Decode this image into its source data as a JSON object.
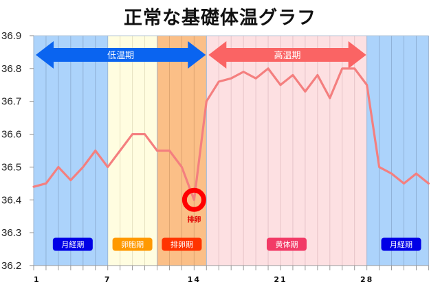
{
  "title": "正常な基礎体温グラフ",
  "chart_data": {
    "type": "line",
    "title": "正常な基礎体温グラフ",
    "xlabel": "",
    "ylabel": "",
    "ylim": [
      36.2,
      36.9
    ],
    "yticks": [
      36.9,
      36.8,
      36.7,
      36.6,
      36.5,
      36.4,
      36.3,
      36.2
    ],
    "ytick_labels": [
      "36.9",
      "36.8",
      "36.7",
      "36.6",
      "36.5",
      "36.4",
      "36.3",
      "36.2"
    ],
    "xlim": [
      1,
      33
    ],
    "xtick_labels": [
      {
        "day": 1,
        "label": "1"
      },
      {
        "day": 7,
        "label": "7"
      },
      {
        "day": 14,
        "label": "14"
      },
      {
        "day": 21,
        "label": "21"
      },
      {
        "day": 28,
        "label": "28"
      }
    ],
    "x": [
      1,
      2,
      3,
      4,
      5,
      6,
      7,
      8,
      9,
      10,
      11,
      12,
      13,
      14,
      15,
      16,
      17,
      18,
      19,
      20,
      21,
      22,
      23,
      24,
      25,
      26,
      27,
      28,
      29,
      30,
      31,
      32,
      33
    ],
    "series": [
      {
        "name": "基礎体温",
        "color": "#f47f7f",
        "values": [
          36.44,
          36.45,
          36.5,
          36.46,
          36.5,
          36.55,
          36.5,
          36.55,
          36.6,
          36.6,
          36.55,
          36.55,
          36.5,
          36.4,
          36.7,
          36.76,
          36.77,
          36.79,
          36.77,
          36.8,
          36.75,
          36.78,
          36.73,
          36.78,
          36.71,
          36.8,
          36.8,
          36.75,
          36.5,
          36.48,
          36.45,
          36.48,
          36.45
        ]
      }
    ],
    "phases": [
      {
        "name": "月経期",
        "start": 1,
        "end": 7,
        "bg": "#acd3fb",
        "badge_color": "#0000e6"
      },
      {
        "name": "卵胞期",
        "start": 7,
        "end": 11,
        "bg": "#fffde0",
        "badge_color": "#ff9900"
      },
      {
        "name": "排卵期",
        "start": 11,
        "end": 15,
        "bg": "#fbbf87",
        "badge_color": "#ff3300"
      },
      {
        "name": "黄体期",
        "start": 15,
        "end": 28,
        "bg": "#fde0e2",
        "badge_color": "#f23a66"
      },
      {
        "name": "月経期",
        "start": 28,
        "end": 33,
        "bg": "#acd3fb",
        "badge_color": "#0000e6"
      }
    ],
    "annotations": [
      {
        "type": "double-arrow",
        "label": "低温期",
        "from_day": 1,
        "to_day": 15,
        "color": "#0a64f0"
      },
      {
        "type": "double-arrow",
        "label": "高温期",
        "from_day": 15,
        "to_day": 28,
        "color": "#fa6464"
      },
      {
        "type": "circle-marker",
        "label": "排卵",
        "day": 14,
        "value": 36.4,
        "color": "#ff0000"
      }
    ],
    "grid": {
      "vertical": true,
      "horizontal": false
    },
    "legend": null
  },
  "arrows": {
    "low": "低温期",
    "high": "高温期"
  },
  "badges": [
    "月経期",
    "卵胞期",
    "排卵期",
    "黄体期",
    "月経期"
  ],
  "ovulation_label": "排卵"
}
